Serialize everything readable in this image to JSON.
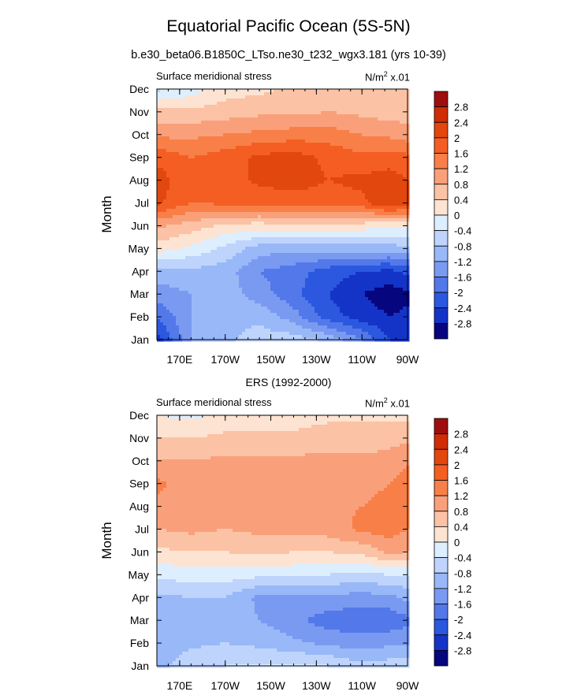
{
  "title": "Equatorial Pacific Ocean (5S-5N)",
  "subtitle": "b.e30_beta06.B1850C_LTso.ne30_t232_wgx3.181 (yrs 10-39)",
  "chart_data": [
    {
      "type": "heatmap",
      "panel_title": "",
      "left_label": "Surface meridional stress",
      "right_label": "N/m",
      "right_label_sup": "2",
      "right_label_suffix": " x.01",
      "ylabel": "Month",
      "x_ticks": [
        "170E",
        "170W",
        "150W",
        "130W",
        "110W",
        "90W"
      ],
      "y_ticks": [
        "Jan",
        "Feb",
        "Mar",
        "Apr",
        "May",
        "Jun",
        "Jul",
        "Aug",
        "Sep",
        "Oct",
        "Nov",
        "Dec"
      ],
      "xlim": [
        160,
        270
      ],
      "xlim_units": "degrees east",
      "levels": [
        -2.8,
        -2.4,
        -2,
        -1.6,
        -1.2,
        -0.8,
        -0.4,
        0,
        0.4,
        0.8,
        1.2,
        1.6,
        2,
        2.4,
        2.8
      ],
      "grid_x": [
        160,
        175,
        190,
        205,
        220,
        235,
        250,
        262,
        270
      ],
      "grid_values": [
        [
          -2.6,
          -1.2,
          -0.9,
          -0.6,
          -0.6,
          -0.9,
          -1.6,
          -2.4,
          -2.6
        ],
        [
          -2.0,
          -1.2,
          -0.9,
          -0.9,
          -1.4,
          -2.2,
          -2.6,
          -2.8,
          -2.7
        ],
        [
          -1.4,
          -1.2,
          -1.0,
          -1.4,
          -1.9,
          -2.4,
          -2.8,
          -3.0,
          -2.9
        ],
        [
          -1.0,
          -0.9,
          -1.0,
          -1.6,
          -1.8,
          -2.2,
          -2.4,
          -2.5,
          -2.3
        ],
        [
          0.2,
          -0.1,
          -0.5,
          -1.0,
          -1.1,
          -1.0,
          -1.0,
          -1.0,
          -0.9
        ],
        [
          0.9,
          0.6,
          0.3,
          0.2,
          0.4,
          0.3,
          0.2,
          0.1,
          0.1
        ],
        [
          2.1,
          1.6,
          1.7,
          1.7,
          1.8,
          1.8,
          1.9,
          2.4,
          2.2
        ],
        [
          2.2,
          1.7,
          1.8,
          2.1,
          2.2,
          2.0,
          2.1,
          2.2,
          2.0
        ],
        [
          1.9,
          1.6,
          1.8,
          2.1,
          2.2,
          1.9,
          1.7,
          1.8,
          1.7
        ],
        [
          1.1,
          1.1,
          1.2,
          1.3,
          1.4,
          1.4,
          1.2,
          1.1,
          1.0
        ],
        [
          0.5,
          0.5,
          0.6,
          0.7,
          0.7,
          0.8,
          0.7,
          0.6,
          0.6
        ],
        [
          -0.5,
          -0.2,
          0.2,
          0.3,
          0.5,
          0.6,
          0.5,
          0.4,
          0.4
        ]
      ]
    },
    {
      "type": "heatmap",
      "panel_title": "ERS (1992-2000)",
      "left_label": "Surface meridional stress",
      "right_label": "N/m",
      "right_label_sup": "2",
      "right_label_suffix": " x.01",
      "ylabel": "Month",
      "x_ticks": [
        "170E",
        "170W",
        "150W",
        "130W",
        "110W",
        "90W"
      ],
      "y_ticks": [
        "Jan",
        "Feb",
        "Mar",
        "Apr",
        "May",
        "Jun",
        "Jul",
        "Aug",
        "Sep",
        "Oct",
        "Nov",
        "Dec"
      ],
      "xlim": [
        160,
        270
      ],
      "xlim_units": "degrees east",
      "levels": [
        -2.8,
        -2.4,
        -2,
        -1.6,
        -1.2,
        -0.8,
        -0.4,
        0,
        0.4,
        0.8,
        1.2,
        1.6,
        2,
        2.4,
        2.8
      ],
      "grid_x": [
        160,
        175,
        190,
        205,
        220,
        235,
        250,
        262,
        270
      ],
      "grid_values": [
        [
          -1.0,
          -0.5,
          -0.4,
          -0.4,
          -0.3,
          -0.4,
          -0.7,
          -0.6,
          -0.6
        ],
        [
          -1.1,
          -0.9,
          -0.8,
          -0.9,
          -1.1,
          -1.3,
          -1.4,
          -1.3,
          -1.3
        ],
        [
          -1.2,
          -1.1,
          -1.0,
          -1.2,
          -1.5,
          -1.8,
          -1.9,
          -1.9,
          -1.7
        ],
        [
          -0.9,
          -0.8,
          -0.8,
          -1.3,
          -1.3,
          -1.3,
          -1.4,
          -1.3,
          -1.1
        ],
        [
          -0.3,
          -0.2,
          -0.2,
          -0.3,
          -0.3,
          -0.4,
          -0.5,
          -0.4,
          -0.4
        ],
        [
          0.3,
          0.4,
          0.4,
          0.5,
          0.4,
          0.4,
          0.5,
          0.9,
          0.8
        ],
        [
          0.8,
          0.9,
          0.8,
          0.9,
          0.9,
          1.0,
          1.3,
          1.4,
          1.2
        ],
        [
          1.1,
          1.0,
          1.0,
          1.1,
          1.1,
          1.1,
          1.2,
          1.3,
          1.3
        ],
        [
          1.3,
          1.0,
          1.1,
          1.2,
          1.2,
          1.1,
          1.1,
          1.2,
          1.5
        ],
        [
          0.8,
          0.8,
          0.9,
          0.9,
          0.9,
          0.9,
          0.9,
          0.9,
          1.1
        ],
        [
          0.4,
          0.4,
          0.5,
          0.5,
          0.5,
          0.6,
          0.6,
          0.7,
          0.7
        ],
        [
          0.0,
          -0.1,
          0.1,
          0.2,
          0.2,
          0.3,
          0.3,
          0.3,
          0.3
        ]
      ]
    }
  ],
  "colorbar": {
    "labels": [
      "2.8",
      "2.4",
      "2",
      "1.6",
      "1.2",
      "0.8",
      "0.4",
      "0",
      "-0.4",
      "-0.8",
      "-1.2",
      "-1.6",
      "-2",
      "-2.4",
      "-2.8"
    ],
    "colors": [
      "#9e0e0e",
      "#d02c08",
      "#e2470e",
      "#f55e22",
      "#f88048",
      "#f9a07a",
      "#fbc2a5",
      "#fde3d2",
      "#ddeeff",
      "#bed4fc",
      "#98b8f8",
      "#7a9af2",
      "#5278ea",
      "#2b58df",
      "#1434c8",
      "#06067f"
    ]
  }
}
